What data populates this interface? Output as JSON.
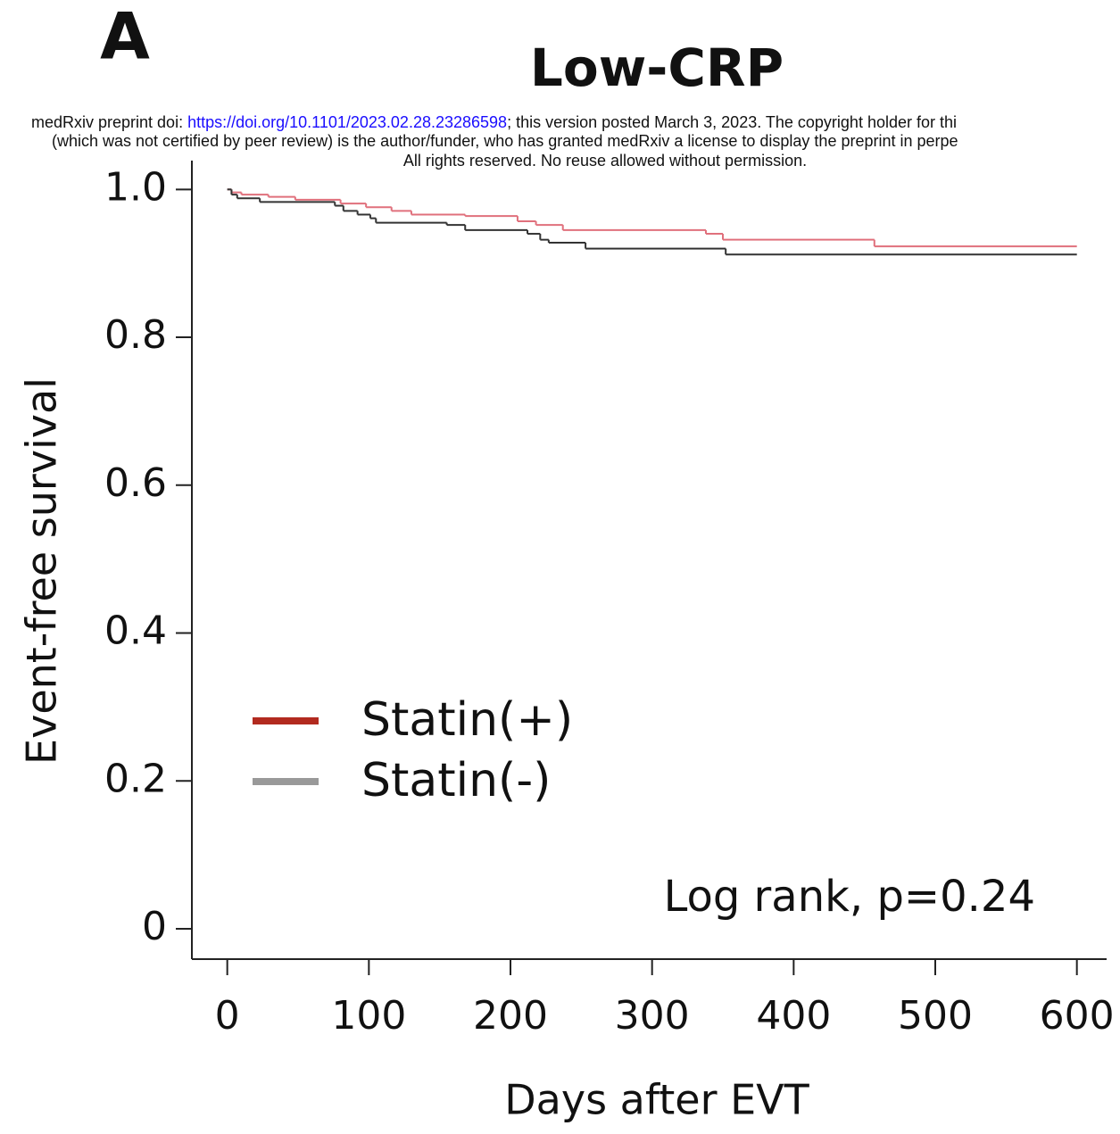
{
  "panel_label": "A",
  "preprint_notice": {
    "line1": [
      "medRxiv preprint doi: ",
      "https://doi.org/10.1101/2023.02.28.23286598",
      "; this version posted March 3, 2023. The copyright holder for thi"
    ],
    "line2": "(which was not certified by peer review) is the author/funder, who has granted medRxiv a license to display the preprint in perpe",
    "line3": "All rights reserved. No reuse allowed without permission."
  },
  "chart_data": {
    "type": "step",
    "title": "Low-CRP",
    "x_label": "Days after EVT",
    "y_label": "Event-free survival",
    "annotation": "Log rank, p=0.24",
    "xlim": [
      -25,
      621
    ],
    "ylim": [
      -0.041,
      1.039
    ],
    "xticks": [
      0,
      100,
      200,
      300,
      400,
      500,
      600
    ],
    "yticks": [
      0,
      0.2,
      0.4,
      0.6,
      0.8,
      {
        "value": 1,
        "label": "1.0"
      }
    ],
    "series": [
      {
        "name": "Statin(+)",
        "color": "#b22a1f",
        "line_color": "#e0707c",
        "x": [
          0,
          3,
          10,
          29,
          48,
          80,
          98,
          116,
          130,
          168,
          205,
          218,
          237,
          338,
          350,
          457,
          600
        ],
        "values": [
          1.0,
          0.996,
          0.993,
          0.99,
          0.986,
          0.981,
          0.976,
          0.971,
          0.966,
          0.964,
          0.957,
          0.952,
          0.945,
          0.94,
          0.932,
          0.923,
          0.923
        ]
      },
      {
        "name": "Statin(-)",
        "color": "#999999",
        "line_color": "#333333",
        "x": [
          0,
          3,
          7,
          23,
          76,
          82,
          92,
          101,
          105,
          155,
          168,
          212,
          221,
          227,
          253,
          352,
          600
        ],
        "values": [
          1.0,
          0.993,
          0.988,
          0.983,
          0.978,
          0.971,
          0.966,
          0.961,
          0.955,
          0.952,
          0.945,
          0.94,
          0.932,
          0.928,
          0.92,
          0.912,
          0.912
        ]
      }
    ]
  }
}
